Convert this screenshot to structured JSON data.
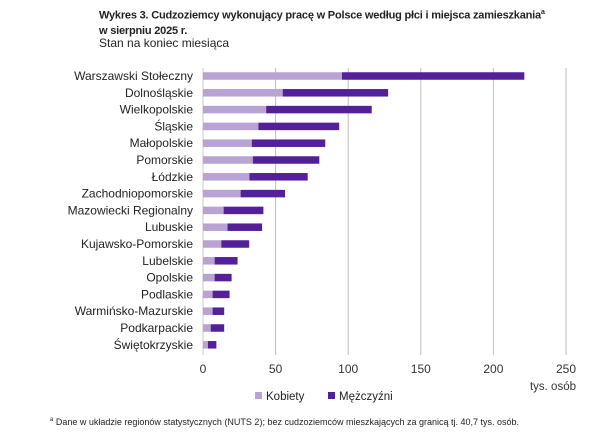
{
  "chart_data": {
    "type": "bar",
    "orientation": "horizontal",
    "stacked": true,
    "title": "Wykres 3. Cudzoziemcy wykonujący pracę w Polsce według płci i miejsca zamieszkania",
    "title_superscript": "a",
    "title_line2": "w sierpniu 2025 r.",
    "subtitle": "Stan na koniec miesiąca",
    "xlabel": "tys. osób",
    "xlim": [
      0,
      250
    ],
    "xticks": [
      0,
      50,
      100,
      150,
      200,
      250
    ],
    "grid": "vertical",
    "legend_position": "bottom",
    "categories": [
      "Warszawski Stołeczny",
      "Dolnośląskie",
      "Wielkopolskie",
      "Śląskie",
      "Małopolskie",
      "Pomorskie",
      "Łódzkie",
      "Zachodniopomorskie",
      "Mazowiecki Regionalny",
      "Lubuskie",
      "Kujawsko-Pomorskie",
      "Lubelskie",
      "Opolskie",
      "Podlaskie",
      "Warmińsko-Mazurskie",
      "Podkarpackie",
      "Świętokrzyskie"
    ],
    "series": [
      {
        "name": "Kobiety",
        "color": "#b9a3d4",
        "values": [
          95.7,
          54.9,
          43.5,
          38.2,
          33.6,
          34.3,
          32.0,
          25.9,
          14.2,
          16.9,
          12.6,
          8.0,
          8.0,
          6.6,
          6.6,
          5.3,
          3.4
        ]
      },
      {
        "name": "Mężczyźni",
        "color": "#53209a",
        "values": [
          125.6,
          72.6,
          72.7,
          55.6,
          50.6,
          45.8,
          40.1,
          30.6,
          27.4,
          23.8,
          19.2,
          15.8,
          11.7,
          11.7,
          8.0,
          9.3,
          5.8
        ]
      }
    ],
    "footnote_marker": "a",
    "footnote": "Dane w układzie regionów statystycznych (NUTS 2); bez cudzoziemców mieszkających za granicą tj. 40,7 tys. osób."
  }
}
